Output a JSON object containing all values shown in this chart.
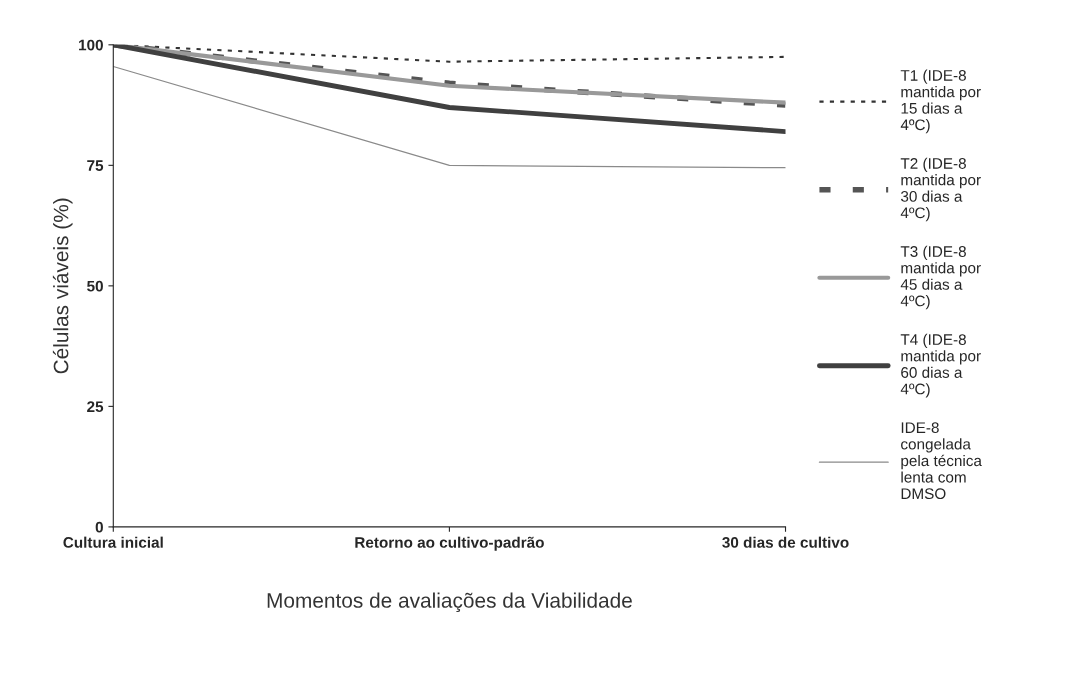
{
  "chart_data": {
    "type": "line",
    "xlabel": "Momentos de avaliações da Viabilidade",
    "ylabel": "Células viáveis (%)",
    "categories": [
      "Cultura inicial",
      "Retorno ao cultivo-padrão",
      "30 dias de cultivo"
    ],
    "ylim": [
      0,
      100
    ],
    "yticks": [
      0,
      25,
      50,
      75,
      100
    ],
    "grid": false,
    "legend": "right",
    "series": [
      {
        "name": "T1 (IDE-8\nmantida por\n15 dias a\n4ºC)",
        "color": "#333333",
        "line_style": "dotted",
        "values": [
          100,
          96.5,
          97.5
        ]
      },
      {
        "name": "T2 (IDE-8\nmantida por\n30 dias a\n4ºC)",
        "color": "#555555",
        "line_style": "dashed",
        "values": [
          100,
          92,
          87.5
        ]
      },
      {
        "name": "T3 (IDE-8\nmantida por\n45 dias a\n4ºC)",
        "color": "#999999",
        "line_style": "solid",
        "values": [
          100,
          91.5,
          88
        ]
      },
      {
        "name": "T4 (IDE-8\nmantida por\n60 dias a\n4ºC)",
        "color": "#404040",
        "line_style": "solid",
        "values": [
          100,
          87,
          82
        ]
      },
      {
        "name": "IDE-8\ncongelada\npela técnica\nlenta com\nDMSO",
        "color": "#8a8a8a",
        "line_style": "solid",
        "values": [
          95.5,
          75,
          74.5
        ]
      }
    ]
  }
}
